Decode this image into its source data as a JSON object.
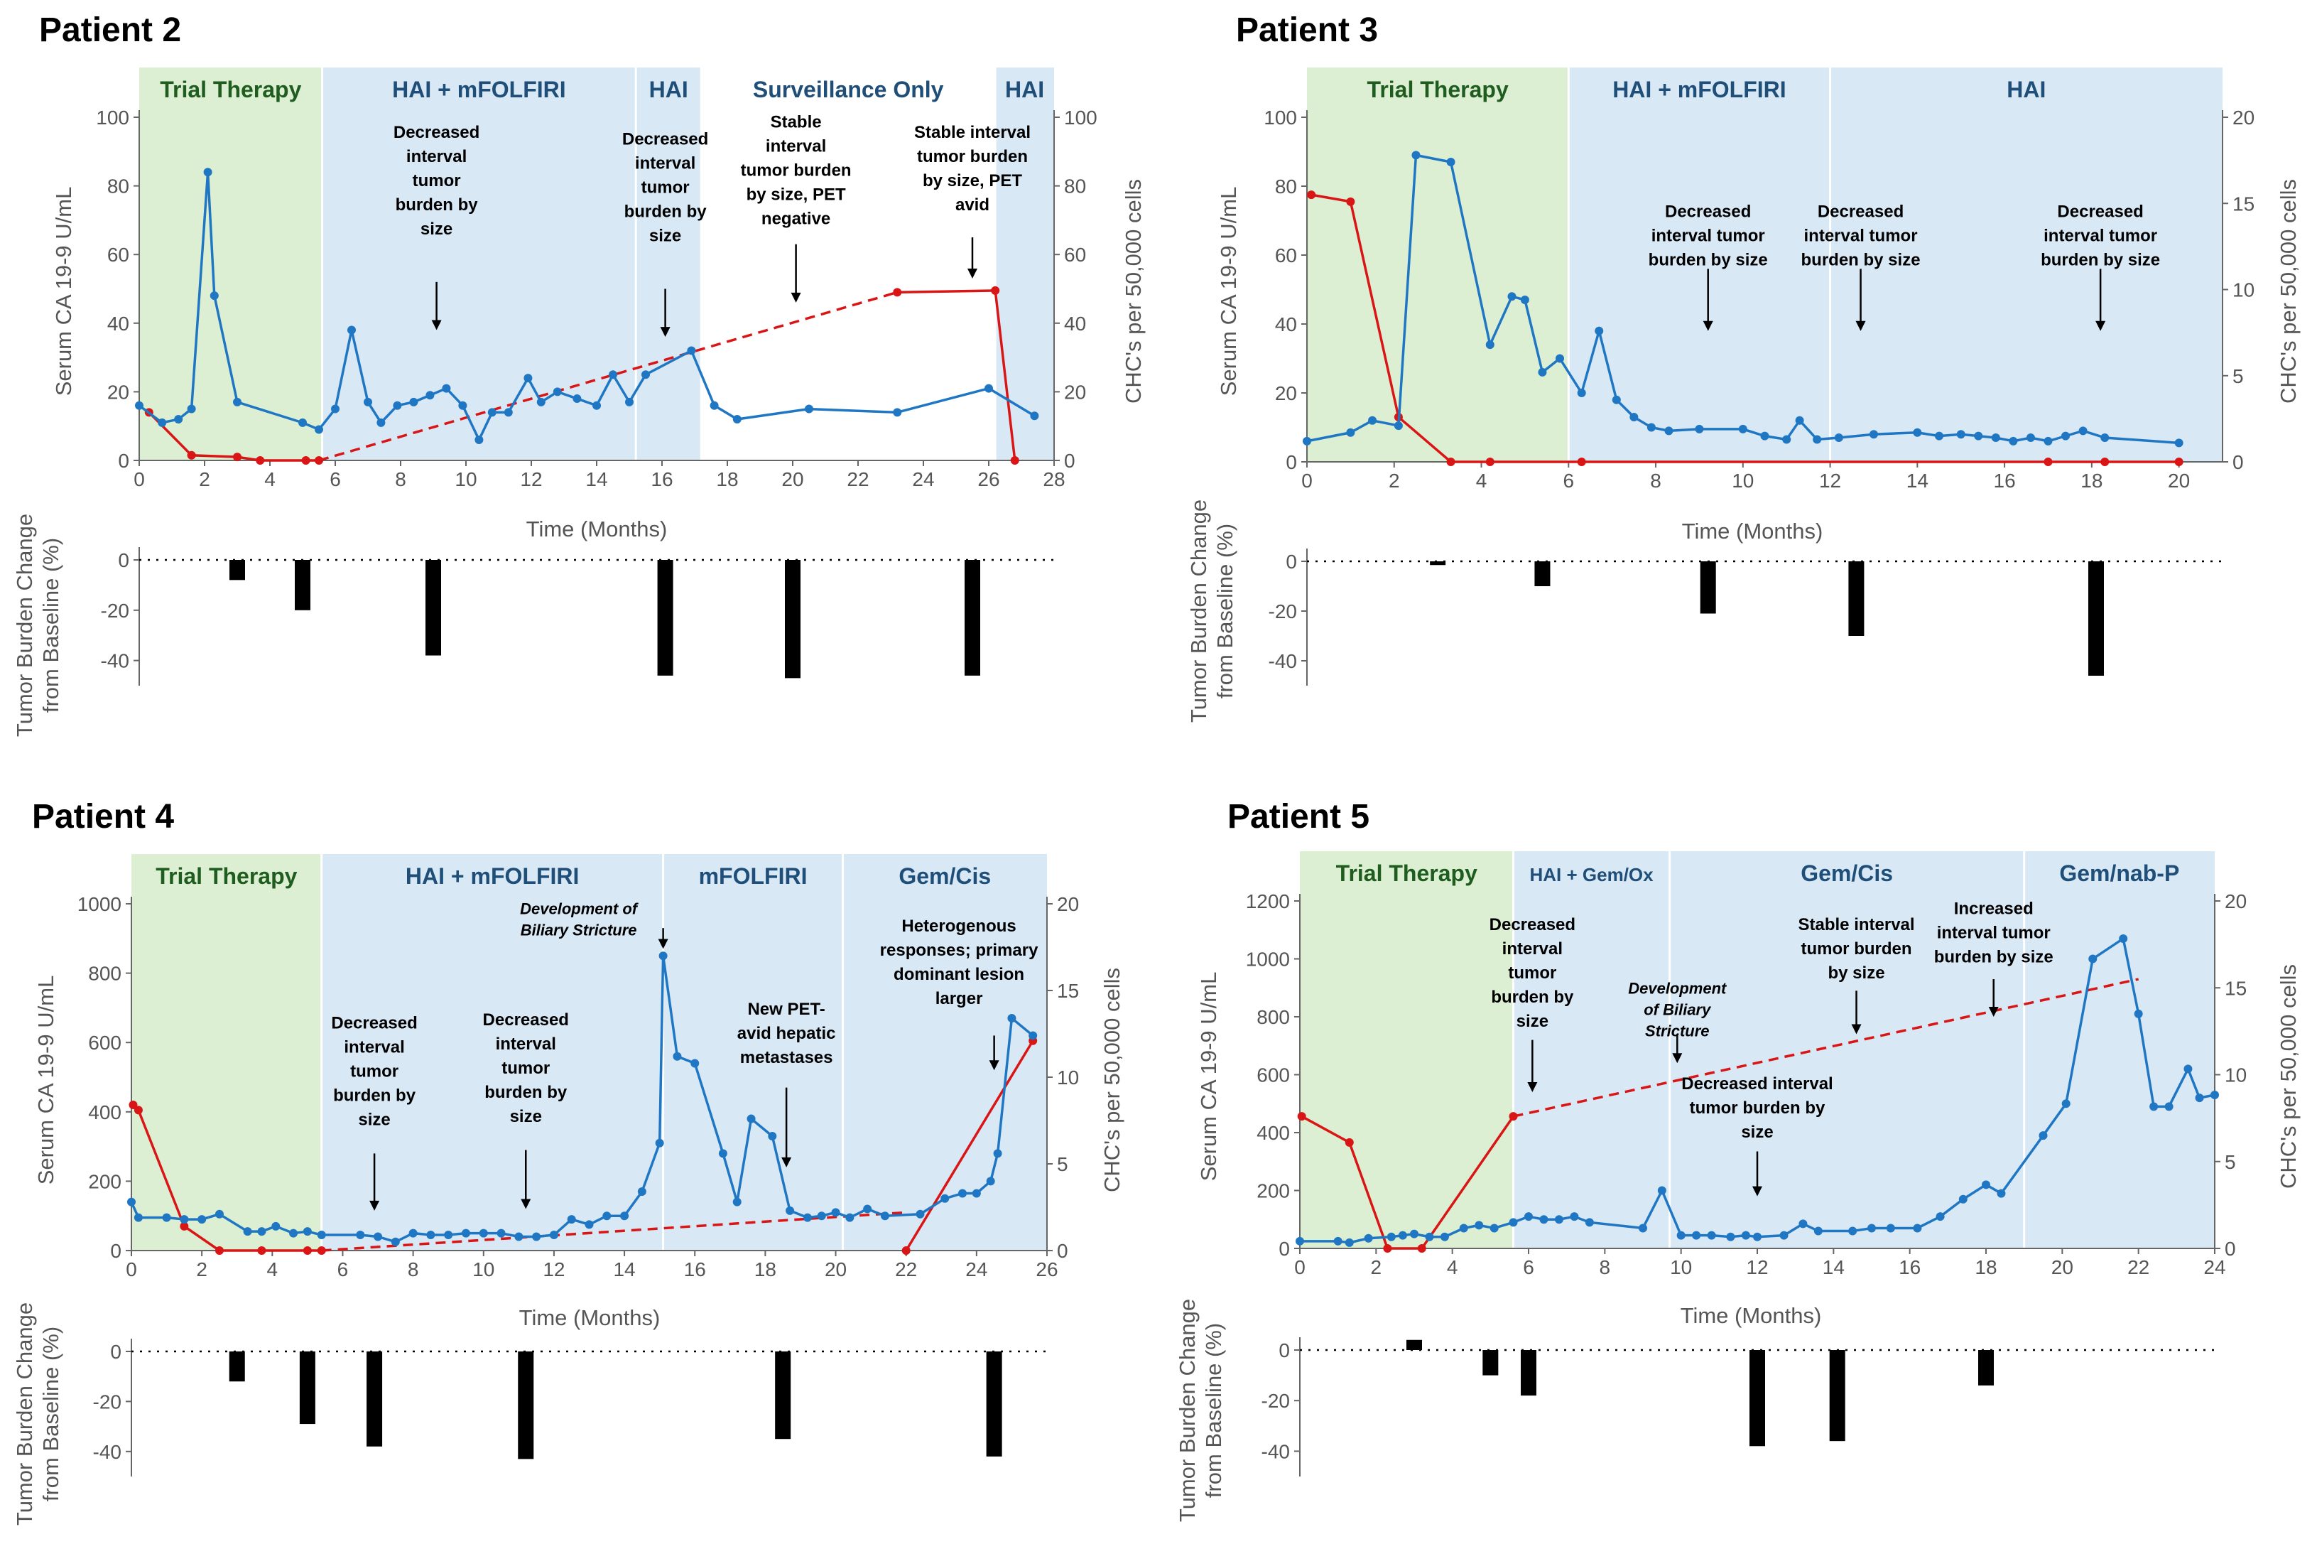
{
  "figure": {
    "colors": {
      "ca": "#1f77c4",
      "chc": "#d91515",
      "ca_axis": "#1f6fb5",
      "chc_axis": "#c00000",
      "trial_band": "#dcefd2",
      "therapy_band": "#d8e8f5",
      "trial_label": "#1f5c1f",
      "therapy_label": "#1f4e79"
    },
    "x_axis_title": "Time (Months)",
    "ca_axis_title": "Serum CA 19-9 U/mL",
    "chc_axis_title": "CHC's per 50,000 cells",
    "bar_axis_title_line1": "Tumor Burden Change",
    "bar_axis_title_line2": "from Baseline (%)"
  },
  "chart_data": [
    {
      "type": "line",
      "title": "Patient 2",
      "xlim": [
        0,
        28
      ],
      "xticks": [
        0,
        2,
        4,
        6,
        8,
        10,
        12,
        14,
        16,
        18,
        20,
        22,
        24,
        26,
        28
      ],
      "y_left": {
        "lim": [
          0,
          100
        ],
        "ticks": [
          0,
          20,
          40,
          60,
          80,
          100
        ]
      },
      "y_right": {
        "lim": [
          0,
          100
        ],
        "ticks": [
          0,
          20,
          40,
          60,
          80,
          100
        ]
      },
      "bands": [
        {
          "label": "Trial Therapy",
          "start": 0,
          "end": 5.6,
          "kind": "trial"
        },
        {
          "label": "HAI + mFOLFIRI",
          "start": 5.6,
          "end": 15.2,
          "kind": "therapy"
        },
        {
          "label": "HAI",
          "start": 15.2,
          "end": 17.2,
          "kind": "therapy"
        },
        {
          "label": "Surveillance Only",
          "start": 17.2,
          "end": 26.2,
          "kind": "none"
        },
        {
          "label": "HAI",
          "start": 26.2,
          "end": 28,
          "kind": "therapy"
        }
      ],
      "ca199": {
        "x": [
          0,
          0.7,
          1.2,
          1.6,
          2.1,
          2.3,
          3.0,
          5.0,
          5.5,
          6.0,
          6.5,
          7.0,
          7.4,
          7.9,
          8.4,
          8.9,
          9.4,
          9.9,
          10.4,
          10.8,
          11.3,
          11.9,
          12.3,
          12.8,
          13.4,
          14.0,
          14.5,
          15.0,
          15.5,
          16.9,
          17.6,
          18.3,
          20.5,
          23.2,
          26.0,
          27.4
        ],
        "y": [
          16,
          11,
          12,
          15,
          84,
          48,
          17,
          11,
          9,
          15,
          38,
          17,
          11,
          16,
          17,
          19,
          21,
          16,
          6,
          14,
          14,
          24,
          17,
          20,
          18,
          16,
          25,
          17,
          25,
          32,
          16,
          12,
          15,
          14,
          21,
          13
        ]
      },
      "chc": {
        "solid": [
          {
            "x": [
              0.3,
              1.6,
              3.0,
              3.7,
              5.1,
              5.5
            ],
            "y": [
              14,
              1.5,
              1,
              0,
              0,
              0
            ]
          },
          {
            "x": [
              23.2,
              26.2,
              26.8
            ],
            "y": [
              49,
              49.5,
              0
            ]
          }
        ],
        "dashed": [
          {
            "x": [
              5.5,
              23.2
            ],
            "y": [
              0,
              49
            ]
          }
        ]
      },
      "annotations": [
        {
          "lines": [
            "Decreased",
            "interval",
            "tumor",
            "burden by",
            "size"
          ],
          "x": 9.1,
          "y": 94,
          "arrow_x": 9.1,
          "arrow_y1": 52,
          "arrow_y2": 38
        },
        {
          "lines": [
            "Decreased",
            "interval",
            "tumor",
            "burden by",
            "size"
          ],
          "x": 16.1,
          "y": 92,
          "arrow_x": 16.1,
          "arrow_y1": 50,
          "arrow_y2": 36
        },
        {
          "lines": [
            "Stable",
            "interval",
            "tumor burden",
            "by size, PET",
            "negative"
          ],
          "x": 20.1,
          "y": 97,
          "arrow_x": 20.1,
          "arrow_y1": 63,
          "arrow_y2": 46
        },
        {
          "lines": [
            "Stable interval",
            "tumor burden",
            "by size, PET",
            "avid"
          ],
          "x": 25.5,
          "y": 94,
          "arrow_x": 25.5,
          "arrow_y1": 65,
          "arrow_y2": 53
        }
      ],
      "bars": {
        "ylim": [
          -50,
          0
        ],
        "yticks": [
          0,
          -20,
          -40
        ],
        "x": [
          3.0,
          5.0,
          9.0,
          16.1,
          20.0,
          25.5
        ],
        "values": [
          -8,
          -20,
          -38,
          -46,
          -47,
          -46
        ]
      }
    },
    {
      "type": "line",
      "title": "Patient 3",
      "xlim": [
        0,
        21
      ],
      "xticks": [
        0,
        2,
        4,
        6,
        8,
        10,
        12,
        14,
        16,
        18,
        20
      ],
      "y_left": {
        "lim": [
          0,
          100
        ],
        "ticks": [
          0,
          20,
          40,
          60,
          80,
          100
        ]
      },
      "y_right": {
        "lim": [
          0,
          20
        ],
        "ticks": [
          0,
          5,
          10,
          15,
          20
        ]
      },
      "bands": [
        {
          "label": "Trial Therapy",
          "start": 0,
          "end": 6.0,
          "kind": "trial"
        },
        {
          "label": "HAI + mFOLFIRI",
          "start": 6.0,
          "end": 12.0,
          "kind": "therapy"
        },
        {
          "label": "HAI",
          "start": 12.0,
          "end": 21,
          "kind": "therapy"
        }
      ],
      "ca199": {
        "x": [
          0,
          1.0,
          1.5,
          2.1,
          2.5,
          3.3,
          4.2,
          4.7,
          5.0,
          5.4,
          5.8,
          6.3,
          6.7,
          7.1,
          7.5,
          7.9,
          8.3,
          9.0,
          10.0,
          10.5,
          11.0,
          11.3,
          11.7,
          12.2,
          13.0,
          14.0,
          14.5,
          15.0,
          15.4,
          15.8,
          16.2,
          16.6,
          17.0,
          17.4,
          17.8,
          18.3,
          20.0
        ],
        "y": [
          6,
          8.5,
          12,
          10.5,
          89,
          87,
          34,
          48,
          47,
          26,
          30,
          20,
          38,
          18,
          13,
          10,
          9,
          9.5,
          9.5,
          7.5,
          6.5,
          12,
          6.5,
          7,
          8,
          8.5,
          7.5,
          8,
          7.5,
          7,
          6,
          7,
          6,
          7.5,
          9,
          7,
          5.5
        ]
      },
      "chc": {
        "solid": [
          {
            "x": [
              0.1,
              1.0,
              2.1,
              3.3,
              4.2,
              6.3,
              17.0,
              18.3,
              20.0
            ],
            "y": [
              15.5,
              15.1,
              2.6,
              0,
              0,
              0,
              0,
              0,
              0
            ]
          }
        ],
        "dashed": []
      },
      "annotations": [
        {
          "lines": [
            "Decreased",
            "interval tumor",
            "burden by size"
          ],
          "x": 9.2,
          "y": 71,
          "arrow_x": 9.2,
          "arrow_y1": 56,
          "arrow_y2": 38
        },
        {
          "lines": [
            "Decreased",
            "interval tumor",
            "burden by size"
          ],
          "x": 12.7,
          "y": 71,
          "arrow_x": 12.7,
          "arrow_y1": 56,
          "arrow_y2": 38
        },
        {
          "lines": [
            "Decreased",
            "interval tumor",
            "burden by size"
          ],
          "x": 18.2,
          "y": 71,
          "arrow_x": 18.2,
          "arrow_y1": 56,
          "arrow_y2": 38
        }
      ],
      "bars": {
        "ylim": [
          -50,
          0
        ],
        "yticks": [
          0,
          -20,
          -40
        ],
        "x": [
          3.0,
          5.4,
          9.2,
          12.6,
          18.1
        ],
        "values": [
          -1.5,
          -10,
          -21,
          -30,
          -46
        ]
      }
    },
    {
      "type": "line",
      "title": "Patient 4",
      "xlim": [
        0,
        26
      ],
      "xticks": [
        0,
        2,
        4,
        6,
        8,
        10,
        12,
        14,
        16,
        18,
        20,
        22,
        24,
        26
      ],
      "y_left": {
        "lim": [
          0,
          1000
        ],
        "ticks": [
          0,
          200,
          400,
          600,
          800,
          1000
        ]
      },
      "y_right": {
        "lim": [
          0,
          20
        ],
        "ticks": [
          0,
          5,
          10,
          15,
          20
        ]
      },
      "bands": [
        {
          "label": "Trial Therapy",
          "start": 0,
          "end": 5.4,
          "kind": "trial"
        },
        {
          "label": "HAI + mFOLFIRI",
          "start": 5.4,
          "end": 15.1,
          "kind": "therapy"
        },
        {
          "label": "mFOLFIRI",
          "start": 15.1,
          "end": 20.2,
          "kind": "therapy"
        },
        {
          "label": "Gem/Cis",
          "start": 20.2,
          "end": 26,
          "kind": "therapy"
        }
      ],
      "ca199": {
        "x": [
          0,
          0.2,
          1.0,
          1.5,
          2.0,
          2.5,
          3.3,
          3.7,
          4.1,
          4.6,
          5.0,
          5.4,
          6.5,
          7.0,
          7.5,
          8.0,
          8.5,
          9.0,
          9.5,
          10.0,
          10.5,
          11.0,
          11.5,
          12.0,
          12.5,
          13.0,
          13.5,
          14.0,
          14.5,
          15.0,
          15.1,
          15.5,
          16.0,
          16.8,
          17.2,
          17.6,
          18.2,
          18.7,
          19.2,
          19.6,
          20.0,
          20.4,
          20.9,
          21.4,
          22.4,
          23.1,
          23.6,
          24.0,
          24.4,
          24.6,
          25.0,
          25.6
        ],
        "y": [
          140,
          95,
          95,
          90,
          90,
          105,
          55,
          55,
          70,
          50,
          55,
          45,
          45,
          40,
          25,
          50,
          45,
          45,
          50,
          50,
          50,
          40,
          40,
          45,
          90,
          75,
          100,
          100,
          170,
          310,
          850,
          560,
          540,
          280,
          140,
          380,
          330,
          115,
          95,
          100,
          110,
          95,
          120,
          100,
          105,
          150,
          165,
          165,
          200,
          280,
          670,
          620
        ]
      },
      "chc": {
        "solid": [
          {
            "x": [
              0.05,
              0.2,
              1.5,
              2.5,
              3.7,
              5.0,
              5.4
            ],
            "y": [
              8.4,
              8.1,
              1.4,
              0,
              0,
              0,
              0
            ]
          },
          {
            "x": [
              22.0,
              25.6
            ],
            "y": [
              0,
              12.1
            ]
          }
        ],
        "dashed": [
          {
            "x": [
              5.4,
              22.0
            ],
            "y": [
              0,
              2.2
            ]
          }
        ]
      },
      "annotations": [
        {
          "lines": [
            "Decreased",
            "interval",
            "tumor",
            "burden by",
            "size"
          ],
          "x": 6.9,
          "y": 640,
          "arrow_x": 6.9,
          "arrow_y1": 280,
          "arrow_y2": 115
        },
        {
          "lines": [
            "Decreased",
            "interval",
            "tumor",
            "burden by",
            "size"
          ],
          "x": 11.2,
          "y": 650,
          "arrow_x": 11.2,
          "arrow_y1": 290,
          "arrow_y2": 120
        },
        {
          "lines": [
            "New PET-",
            "avid hepatic",
            "metastases"
          ],
          "x": 18.6,
          "y": 680,
          "arrow_x": 18.6,
          "arrow_y1": 470,
          "arrow_y2": 240
        },
        {
          "lines": [
            "Heterogenous",
            "responses; primary",
            "dominant lesion",
            "larger"
          ],
          "x": 23.5,
          "y": 920,
          "arrow_x": 24.5,
          "arrow_y1": 620,
          "arrow_y2": 520
        }
      ],
      "italic_annotations": [
        {
          "lines": [
            "Development of",
            "Biliary Stricture"
          ],
          "x": 12.7,
          "y": 970,
          "arrow_x": 15.1,
          "arrow_y1": 930,
          "arrow_y2": 870
        }
      ],
      "bars": {
        "ylim": [
          -50,
          0
        ],
        "yticks": [
          0,
          -20,
          -40
        ],
        "x": [
          3.0,
          5.0,
          6.9,
          11.2,
          18.5,
          24.5
        ],
        "values": [
          -12,
          -29,
          -38,
          -43,
          -35,
          -42
        ]
      }
    },
    {
      "type": "line",
      "title": "Patient 5",
      "xlim": [
        0,
        24
      ],
      "xticks": [
        0,
        2,
        4,
        6,
        8,
        10,
        12,
        14,
        16,
        18,
        20,
        22,
        24
      ],
      "y_left": {
        "lim": [
          0,
          1200
        ],
        "ticks": [
          0,
          200,
          400,
          600,
          800,
          1000,
          1200
        ]
      },
      "y_right": {
        "lim": [
          0,
          20
        ],
        "ticks": [
          0,
          5,
          10,
          15,
          20
        ]
      },
      "bands": [
        {
          "label": "Trial Therapy",
          "start": 0,
          "end": 5.6,
          "kind": "trial"
        },
        {
          "label": "HAI + Gem/Ox",
          "start": 5.6,
          "end": 9.7,
          "kind": "therapy"
        },
        {
          "label": "Gem/Cis",
          "start": 9.7,
          "end": 19.0,
          "kind": "therapy"
        },
        {
          "label": "Gem/nab-P",
          "start": 19.0,
          "end": 24,
          "kind": "therapy"
        }
      ],
      "ca199": {
        "x": [
          0,
          1.0,
          1.3,
          1.8,
          2.4,
          2.7,
          3.0,
          3.4,
          3.8,
          4.3,
          4.7,
          5.1,
          5.6,
          6.0,
          6.4,
          6.8,
          7.2,
          7.6,
          9.0,
          9.5,
          10.0,
          10.4,
          10.8,
          11.3,
          11.7,
          12.0,
          12.7,
          13.2,
          13.6,
          14.5,
          15.0,
          15.5,
          16.2,
          16.8,
          17.4,
          18.0,
          18.4,
          19.5,
          20.1,
          20.8,
          21.6,
          22.0,
          22.4,
          22.8,
          23.3,
          23.6,
          24.0
        ],
        "y": [
          25,
          25,
          20,
          35,
          40,
          45,
          50,
          40,
          40,
          70,
          80,
          70,
          90,
          110,
          100,
          100,
          110,
          90,
          70,
          200,
          45,
          45,
          45,
          40,
          45,
          40,
          45,
          85,
          60,
          60,
          70,
          70,
          70,
          110,
          170,
          220,
          190,
          390,
          500,
          1000,
          1070,
          810,
          490,
          490,
          620,
          520,
          530
        ]
      },
      "chc": {
        "solid": [
          {
            "x": [
              0.05,
              1.3,
              2.3,
              3.2,
              5.6
            ],
            "y": [
              7.6,
              6.1,
              0,
              0,
              7.6
            ]
          }
        ],
        "dashed": [
          {
            "x": [
              5.6,
              22.0
            ],
            "y": [
              7.6,
              15.5
            ]
          }
        ]
      },
      "annotations": [
        {
          "lines": [
            "Decreased",
            "interval",
            "tumor",
            "burden by",
            "size"
          ],
          "x": 6.1,
          "y": 1100,
          "arrow_x": 6.1,
          "arrow_y1": 720,
          "arrow_y2": 540
        },
        {
          "lines": [
            "Stable interval",
            "tumor burden",
            "by size"
          ],
          "x": 14.6,
          "y": 1100,
          "arrow_x": 14.6,
          "arrow_y1": 890,
          "arrow_y2": 740
        },
        {
          "lines": [
            "Increased",
            "interval tumor",
            "burden by size"
          ],
          "x": 18.2,
          "y": 1155,
          "arrow_x": 18.2,
          "arrow_y1": 930,
          "arrow_y2": 800
        },
        {
          "lines": [
            "Decreased interval",
            "tumor burden by",
            "size"
          ],
          "x": 12.0,
          "y": 550,
          "arrow_x": 12.0,
          "arrow_y1": 335,
          "arrow_y2": 180
        }
      ],
      "italic_annotations": [
        {
          "lines": [
            "Development",
            "of Biliary",
            "Stricture"
          ],
          "x": 9.9,
          "y": 880,
          "arrow_x": 9.9,
          "arrow_y1": 740,
          "arrow_y2": 640
        }
      ],
      "bars": {
        "ylim": [
          -50,
          0
        ],
        "yticks": [
          0,
          -20,
          -40
        ],
        "x": [
          3.0,
          5.0,
          6.0,
          12.0,
          14.1,
          18.0
        ],
        "values": [
          4,
          -10,
          -18,
          -38,
          -36,
          -14
        ]
      }
    }
  ]
}
